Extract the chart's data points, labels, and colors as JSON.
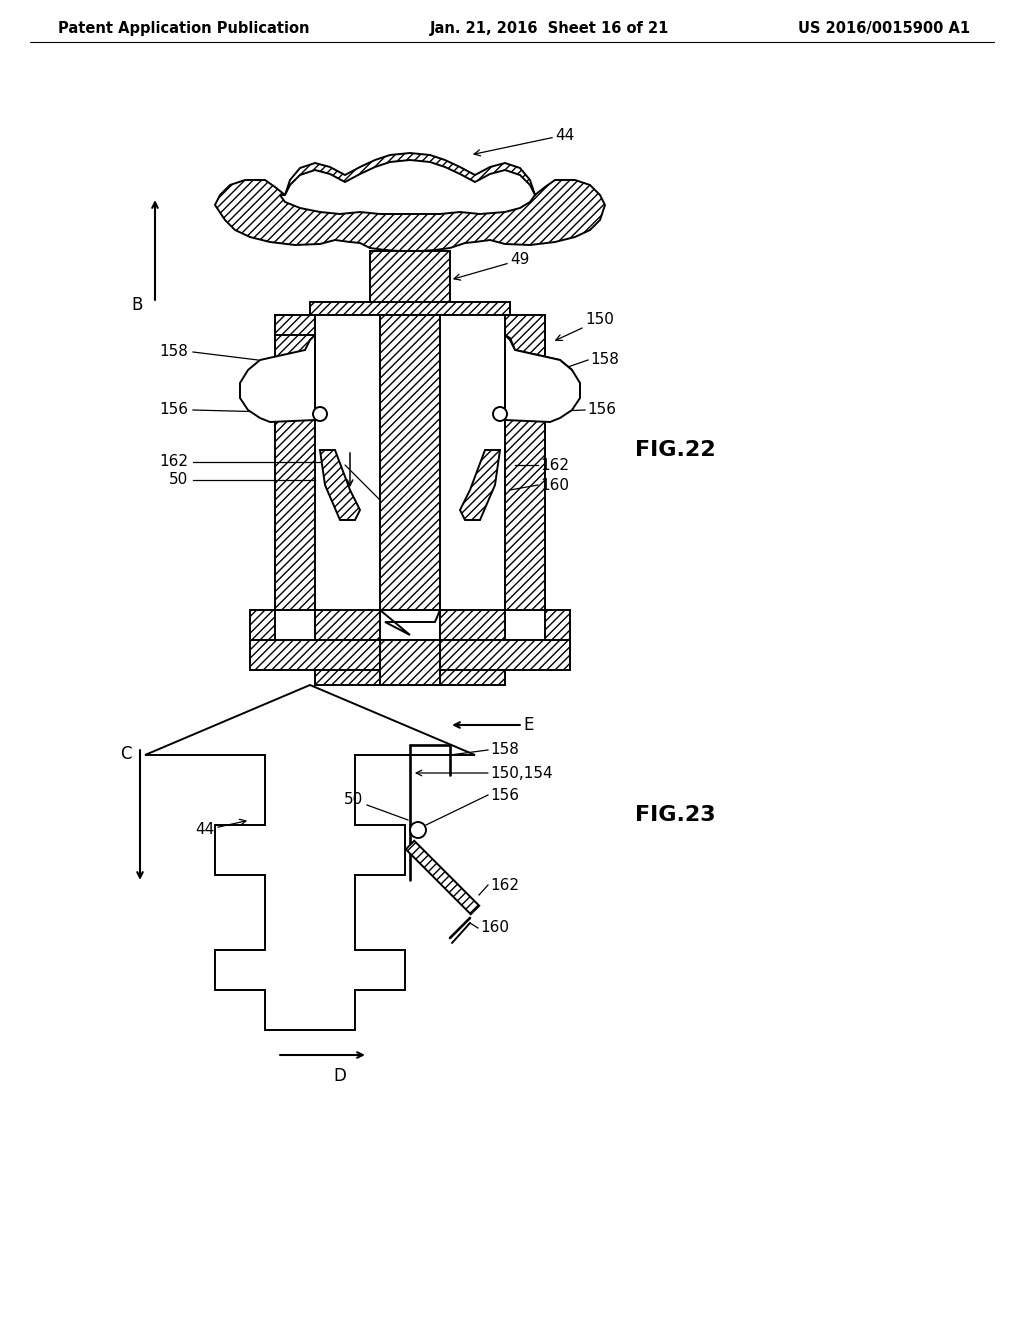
{
  "background_color": "#ffffff",
  "header_left": "Patent Application Publication",
  "header_center": "Jan. 21, 2016  Sheet 16 of 21",
  "header_right": "US 2016/0015900 A1",
  "header_fontsize": 10.5,
  "fig22_label": "FIG.22",
  "fig23_label": "FIG.23",
  "line_color": "#000000",
  "label_fontsize": 11
}
